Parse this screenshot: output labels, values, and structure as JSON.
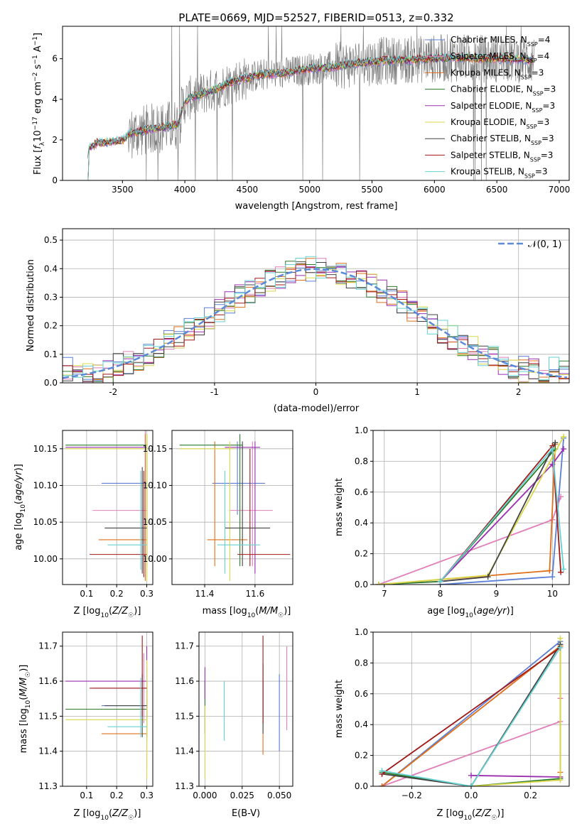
{
  "title": "PLATE=0669, MJD=52527, FIBERID=0513, z=0.332",
  "colors": {
    "Chabrier MILES": "#5b7fd6",
    "Salpeter MILES": "#e07fb8",
    "Kroupa MILES": "#e06f1a",
    "Chabrier ELODIE": "#2d7a2d",
    "Salpeter ELODIE": "#9a2fb0",
    "Kroupa ELODIE": "#d8d84a",
    "Chabrier STELIB": "#444444",
    "Salpeter STELIB": "#a01818",
    "Kroupa STELIB": "#66d1d1",
    "gauss": "#5b8ad8",
    "data": "#808080"
  },
  "chart_data": [
    {
      "type": "line",
      "title": "PLATE=0669, MJD=52527, FIBERID=0513, z=0.332",
      "xlabel": "wavelength [Angstrom, rest frame]",
      "ylabel": "Flux [f_λ 10^-17 erg cm^-2 s^-1 A^-1]",
      "xlim": [
        3020,
        7080
      ],
      "ylim": [
        0,
        7.6
      ],
      "xticks": [
        3500,
        4000,
        4500,
        5000,
        5500,
        6000,
        6500,
        7000
      ],
      "yticks": [
        0,
        2,
        4,
        6
      ],
      "legend": "top-right",
      "legend_entries": [
        {
          "base": "Chabrier MILES, N",
          "sub": "SSP",
          "tail": "=4"
        },
        {
          "base": "Salpeter MILES, N",
          "sub": "SSP",
          "tail": "=4"
        },
        {
          "base": "Kroupa MILES, N",
          "sub": "SSP",
          "tail": "=3"
        },
        {
          "base": "Chabrier ELODIE, N",
          "sub": "SSP",
          "tail": "=3"
        },
        {
          "base": "Salpeter ELODIE, N",
          "sub": "SSP",
          "tail": "=3"
        },
        {
          "base": "Kroupa ELODIE, N",
          "sub": "SSP",
          "tail": "=3"
        },
        {
          "base": "Chabrier STELIB, N",
          "sub": "SSP",
          "tail": "=3"
        },
        {
          "base": "Salpeter STELIB, N",
          "sub": "SSP",
          "tail": "=3"
        },
        {
          "base": "Kroupa STELIB, N",
          "sub": "SSP",
          "tail": "=3"
        }
      ],
      "model_continuum": {
        "x": [
          3200,
          3230,
          3300,
          3400,
          3500,
          3560,
          3700,
          3800,
          3900,
          3950,
          3990,
          4050,
          4200,
          4400,
          4600,
          4800,
          5000,
          5200,
          5400,
          5600,
          5800,
          6000,
          6200,
          6400,
          6600,
          6800
        ],
        "y": [
          0,
          1.6,
          1.85,
          1.9,
          1.95,
          2.3,
          2.5,
          2.6,
          2.7,
          2.8,
          3.8,
          4.1,
          4.4,
          4.9,
          5.2,
          5.3,
          5.5,
          5.6,
          5.8,
          5.9,
          5.95,
          6.0,
          6.05,
          6.0,
          6.0,
          5.95
        ]
      }
    },
    {
      "type": "line",
      "xlabel": "(data-model)/error",
      "ylabel": "Normed distribution",
      "xlim": [
        -2.5,
        2.5
      ],
      "ylim": [
        0,
        0.54
      ],
      "xticks": [
        -2,
        -1,
        0,
        1,
        2
      ],
      "yticks": [
        0.0,
        0.1,
        0.2,
        0.3,
        0.4,
        0.5
      ],
      "legend": "top-right",
      "legend_label": "𝒩(0, 1)",
      "bin_width": 0.1
    },
    {
      "type": "scatter",
      "xlabel": "Z [log10(Z/Z☉)]",
      "ylabel": "age  [log10(age/yr)]",
      "xlim": [
        0.02,
        0.32
      ],
      "ylim": [
        9.965,
        10.175
      ],
      "xticks": [
        0.1,
        0.2,
        0.3
      ],
      "yticks": [
        10.0,
        10.05,
        10.1,
        10.15
      ],
      "points": [
        {
          "model": "Chabrier MILES",
          "x": [
            0.15,
            0.3
          ],
          "y": [
            10.103,
            10.103
          ],
          "yerr_x": 0.3,
          "yerr": [
            9.975,
            10.17
          ]
        },
        {
          "model": "Salpeter MILES",
          "x": [
            0.12,
            0.3
          ],
          "y": [
            10.066,
            10.066
          ],
          "yerr_x": 0.295,
          "yerr": [
            10.05,
            10.175
          ]
        },
        {
          "model": "Kroupa MILES",
          "x": [
            0.14,
            0.3
          ],
          "y": [
            10.026,
            10.026
          ],
          "yerr_x": 0.295,
          "yerr": [
            9.97,
            10.17
          ]
        },
        {
          "model": "Chabrier ELODIE",
          "x": [
            0.03,
            0.3
          ],
          "y": [
            10.155,
            10.155
          ],
          "yerr_x": 0.3,
          "yerr": [
            9.99,
            10.17
          ]
        },
        {
          "model": "Salpeter ELODIE",
          "x": [
            0.03,
            0.3
          ],
          "y": [
            10.152,
            10.152
          ],
          "yerr_x": 0.3,
          "yerr": [
            10.0,
            10.16
          ]
        },
        {
          "model": "Kroupa ELODIE",
          "x": [
            0.03,
            0.3
          ],
          "y": [
            10.15,
            10.15
          ],
          "yerr_x": 0.3,
          "yerr": [
            9.97,
            10.17
          ]
        },
        {
          "model": "Chabrier STELIB",
          "x": [
            0.16,
            0.3
          ],
          "y": [
            10.042,
            10.042
          ],
          "yerr_x": 0.285,
          "yerr": [
            9.98,
            10.125
          ]
        },
        {
          "model": "Salpeter STELIB",
          "x": [
            0.11,
            0.3
          ],
          "y": [
            10.006,
            10.006
          ],
          "yerr_x": 0.29,
          "yerr": [
            9.975,
            10.12
          ]
        },
        {
          "model": "Kroupa STELIB",
          "x": [
            0.17,
            0.3
          ],
          "y": [
            10.019,
            10.019
          ],
          "yerr_x": 0.28,
          "yerr": [
            9.985,
            10.12
          ]
        }
      ]
    },
    {
      "type": "scatter",
      "xlabel": "mass [log10(M/M☉)]",
      "ylabel": "",
      "xlim": [
        11.27,
        11.75
      ],
      "ylim": [
        9.965,
        10.175
      ],
      "xticks": [
        11.4,
        11.6
      ],
      "yticks": [
        10.0,
        10.05,
        10.1,
        10.15
      ],
      "points": [
        {
          "model": "Chabrier MILES",
          "x": [
            11.43,
            11.64
          ],
          "y": [
            10.103,
            10.103
          ],
          "yerr_x": 11.53,
          "yerr": [
            10.06,
            10.16
          ]
        },
        {
          "model": "Salpeter MILES",
          "x": [
            11.5,
            11.67
          ],
          "y": [
            10.066,
            10.066
          ],
          "yerr_x": 11.59,
          "yerr": [
            9.99,
            10.16
          ]
        },
        {
          "model": "Kroupa MILES",
          "x": [
            11.41,
            11.57
          ],
          "y": [
            10.026,
            10.026
          ],
          "yerr_x": 11.44,
          "yerr": [
            9.99,
            10.16
          ]
        },
        {
          "model": "Chabrier ELODIE",
          "x": [
            11.3,
            11.55
          ],
          "y": [
            10.155,
            10.155
          ],
          "yerr_x": 11.54,
          "yerr": [
            9.99,
            10.17
          ]
        },
        {
          "model": "Salpeter ELODIE",
          "x": [
            11.48,
            11.62
          ],
          "y": [
            10.152,
            10.152
          ],
          "yerr_x": 11.6,
          "yerr": [
            9.98,
            10.16
          ]
        },
        {
          "model": "Kroupa ELODIE",
          "x": [
            11.3,
            11.52
          ],
          "y": [
            10.15,
            10.15
          ],
          "yerr_x": 11.5,
          "yerr": [
            9.97,
            10.16
          ]
        },
        {
          "model": "Chabrier STELIB",
          "x": [
            11.48,
            11.66
          ],
          "y": [
            10.042,
            10.042
          ],
          "yerr_x": 11.55,
          "yerr": [
            9.99,
            10.16
          ]
        },
        {
          "model": "Salpeter STELIB",
          "x": [
            11.53,
            11.74
          ],
          "y": [
            10.006,
            10.006
          ],
          "yerr_x": 11.58,
          "yerr": [
            9.99,
            10.15
          ]
        },
        {
          "model": "Kroupa STELIB",
          "x": [
            11.45,
            11.62
          ],
          "y": [
            10.019,
            10.019
          ],
          "yerr_x": 11.48,
          "yerr": [
            9.98,
            10.12
          ]
        }
      ]
    },
    {
      "type": "line",
      "xlabel": "age  [log10(age/yr)]",
      "ylabel": "mass weight",
      "xlim": [
        6.8,
        10.3
      ],
      "ylim": [
        0,
        1.0
      ],
      "xticks": [
        7,
        8,
        9,
        10
      ],
      "yticks": [
        0.0,
        0.2,
        0.4,
        0.6,
        0.8,
        1.0
      ],
      "series": [
        {
          "model": "Chabrier MILES",
          "x": [
            8.0,
            10.0,
            10.2
          ],
          "y": [
            0.0,
            0.05,
            0.95
          ]
        },
        {
          "model": "Salpeter MILES",
          "x": [
            6.9,
            10.0,
            10.15
          ],
          "y": [
            0.0,
            0.42,
            0.57
          ]
        },
        {
          "model": "Kroupa MILES",
          "x": [
            6.9,
            9.95,
            10.05
          ],
          "y": [
            0.0,
            0.09,
            0.91
          ]
        },
        {
          "model": "Chabrier ELODIE",
          "x": [
            6.9,
            8.0,
            10.05
          ],
          "y": [
            0.0,
            0.02,
            0.88
          ]
        },
        {
          "model": "Salpeter ELODIE",
          "x": [
            8.0,
            10.0,
            10.2
          ],
          "y": [
            0.02,
            0.78,
            0.88
          ]
        },
        {
          "model": "Kroupa ELODIE",
          "x": [
            6.9,
            8.85,
            10.2
          ],
          "y": [
            0.0,
            0.06,
            0.96
          ]
        },
        {
          "model": "Chabrier STELIB",
          "x": [
            8.0,
            8.85,
            10.05
          ],
          "y": [
            0.02,
            0.05,
            0.92
          ]
        },
        {
          "model": "Salpeter STELIB",
          "x": [
            8.0,
            10.0,
            10.15
          ],
          "y": [
            0.02,
            0.9,
            0.08
          ]
        },
        {
          "model": "Kroupa STELIB",
          "x": [
            8.0,
            10.0,
            10.2
          ],
          "y": [
            0.02,
            0.88,
            0.1
          ]
        }
      ]
    },
    {
      "type": "scatter",
      "xlabel": "Z [log10(Z/Z☉)]",
      "ylabel": "mass [log10(M/M☉)]",
      "xlim": [
        0.02,
        0.32
      ],
      "ylim": [
        11.3,
        11.74
      ],
      "xticks": [
        0.1,
        0.2,
        0.3
      ],
      "yticks": [
        11.3,
        11.4,
        11.5,
        11.6,
        11.7
      ],
      "points": [
        {
          "model": "Chabrier MILES",
          "x": [
            0.15,
            0.3
          ],
          "y": [
            11.53,
            11.53
          ],
          "yerr_x": 0.3,
          "yerr": [
            11.43,
            11.64
          ]
        },
        {
          "model": "Salpeter MILES",
          "x": [
            0.12,
            0.3
          ],
          "y": [
            11.58,
            11.58
          ],
          "yerr_x": 0.29,
          "yerr": [
            11.48,
            11.68
          ]
        },
        {
          "model": "Kroupa MILES",
          "x": [
            0.15,
            0.3
          ],
          "y": [
            11.45,
            11.45
          ],
          "yerr_x": 0.3,
          "yerr": [
            11.35,
            11.55
          ]
        },
        {
          "model": "Chabrier ELODIE",
          "x": [
            0.03,
            0.3
          ],
          "y": [
            11.52,
            11.52
          ],
          "yerr_x": 0.3,
          "yerr": [
            11.44,
            11.6
          ]
        },
        {
          "model": "Salpeter ELODIE",
          "x": [
            0.03,
            0.3
          ],
          "y": [
            11.6,
            11.6
          ],
          "yerr_x": 0.3,
          "yerr": [
            11.5,
            11.7
          ]
        },
        {
          "model": "Kroupa ELODIE",
          "x": [
            0.03,
            0.3
          ],
          "y": [
            11.49,
            11.49
          ],
          "yerr_x": 0.3,
          "yerr": [
            11.32,
            11.66
          ]
        },
        {
          "model": "Chabrier STELIB",
          "x": [
            0.16,
            0.3
          ],
          "y": [
            11.53,
            11.53
          ],
          "yerr_x": 0.285,
          "yerr": [
            11.44,
            11.62
          ]
        },
        {
          "model": "Salpeter STELIB",
          "x": [
            0.11,
            0.3
          ],
          "y": [
            11.58,
            11.58
          ],
          "yerr_x": 0.285,
          "yerr": [
            11.5,
            11.73
          ]
        },
        {
          "model": "Kroupa STELIB",
          "x": [
            0.17,
            0.3
          ],
          "y": [
            11.47,
            11.47
          ],
          "yerr_x": 0.28,
          "yerr": [
            11.44,
            11.61
          ]
        }
      ]
    },
    {
      "type": "scatter",
      "xlabel": "E(B-V)",
      "ylabel": "",
      "xlim": [
        -0.004,
        0.059
      ],
      "ylim": [
        11.3,
        11.74
      ],
      "xticks": [
        0.0,
        0.025,
        0.05
      ],
      "yticks": [
        11.3,
        11.4,
        11.5,
        11.6,
        11.7
      ],
      "points": [
        {
          "model": "Chabrier MILES",
          "x": 0.05,
          "yerr": [
            11.4,
            11.62
          ]
        },
        {
          "model": "Salpeter MILES",
          "x": 0.055,
          "yerr": [
            11.46,
            11.7
          ]
        },
        {
          "model": "Kroupa MILES",
          "x": 0.039,
          "yerr": [
            11.39,
            11.6
          ]
        },
        {
          "model": "Chabrier ELODIE",
          "x": 0.0,
          "yerr": [
            11.45,
            11.6
          ]
        },
        {
          "model": "Salpeter ELODIE",
          "x": 0.0,
          "yerr": [
            11.55,
            11.64
          ]
        },
        {
          "model": "Kroupa ELODIE",
          "x": 0.0,
          "yerr": [
            11.32,
            11.53
          ]
        },
        {
          "model": "Chabrier STELIB",
          "x": 0.039,
          "yerr": [
            11.45,
            11.65
          ]
        },
        {
          "model": "Salpeter STELIB",
          "x": 0.039,
          "yerr": [
            11.48,
            11.73
          ]
        },
        {
          "model": "Kroupa STELIB",
          "x": 0.013,
          "yerr": [
            11.43,
            11.6
          ]
        }
      ]
    },
    {
      "type": "line",
      "xlabel": "Z [log10(Z/Z☉)]",
      "ylabel": "mass weight",
      "xlim": [
        -0.33,
        0.33
      ],
      "ylim": [
        0,
        1.0
      ],
      "xticks": [
        -0.2,
        0.0,
        0.2
      ],
      "yticks": [
        0.0,
        0.2,
        0.4,
        0.6,
        0.8,
        1.0
      ],
      "series": [
        {
          "model": "Chabrier MILES",
          "x": [
            -0.3,
            0.3
          ],
          "y": [
            0.0,
            0.94
          ]
        },
        {
          "model": "Salpeter MILES",
          "x": [
            -0.3,
            0.3,
            0.3
          ],
          "y": [
            0.0,
            0.42,
            0.57
          ]
        },
        {
          "model": "Kroupa MILES",
          "x": [
            -0.3,
            0.3,
            0.3
          ],
          "y": [
            0.0,
            0.91,
            0.09
          ]
        },
        {
          "model": "Chabrier ELODIE",
          "x": [
            -0.3,
            0.0,
            0.3
          ],
          "y": [
            0.09,
            0.0,
            0.05
          ]
        },
        {
          "model": "Salpeter ELODIE",
          "x": [
            0.0,
            0.3
          ],
          "y": [
            0.07,
            0.06
          ]
        },
        {
          "model": "Kroupa ELODIE",
          "x": [
            0.0,
            0.3,
            0.3
          ],
          "y": [
            0.0,
            0.04,
            0.96
          ]
        },
        {
          "model": "Chabrier STELIB",
          "x": [
            -0.3,
            0.0,
            0.3
          ],
          "y": [
            0.08,
            0.0,
            0.92
          ]
        },
        {
          "model": "Salpeter STELIB",
          "x": [
            -0.3,
            0.3,
            0.3
          ],
          "y": [
            0.08,
            0.9,
            0.9
          ]
        },
        {
          "model": "Kroupa STELIB",
          "x": [
            -0.3,
            0.0,
            0.3
          ],
          "y": [
            0.1,
            0.0,
            0.9
          ]
        }
      ]
    }
  ]
}
